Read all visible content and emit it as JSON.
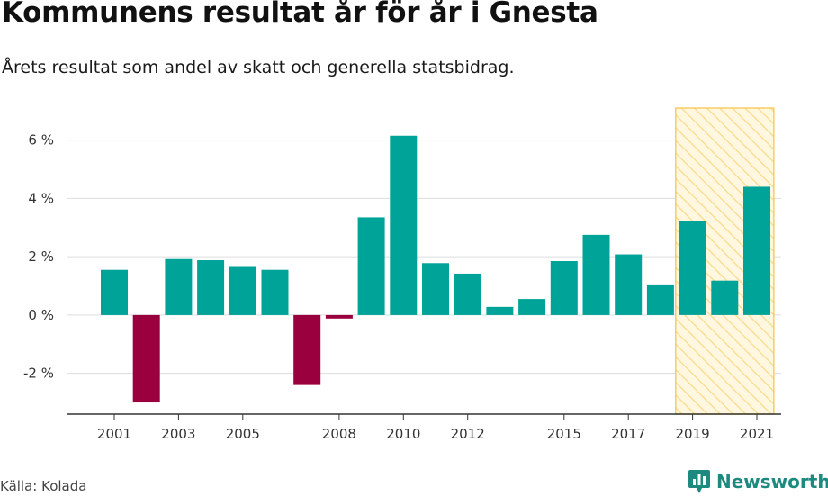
{
  "title": "Kommunens resultat år för år i Gnesta",
  "subtitle": "Årets resultat som andel av skatt och generella statsbidrag.",
  "source": "Källa: Kolada",
  "brand": {
    "name": "Newsworthy",
    "icon": "newsworthy-logo-icon",
    "color": "#1d8a80"
  },
  "colors": {
    "positive": "#00a398",
    "negative": "#99003d",
    "highlight": "#f5c242"
  },
  "chart_data": {
    "type": "bar",
    "categories": [
      "2001",
      "2002",
      "2003",
      "2004",
      "2005",
      "2006",
      "2007",
      "2008",
      "2009",
      "2010",
      "2011",
      "2012",
      "2013",
      "2014",
      "2015",
      "2016",
      "2017",
      "2018",
      "2019",
      "2020",
      "2021"
    ],
    "values": [
      1.55,
      -3.0,
      1.92,
      1.88,
      1.68,
      1.55,
      -2.4,
      -0.12,
      3.35,
      6.15,
      1.78,
      1.42,
      0.28,
      0.55,
      1.85,
      2.75,
      2.08,
      1.05,
      3.22,
      1.18,
      4.4
    ],
    "x_tick_labels": [
      "2001",
      "2003",
      "2005",
      "2008",
      "2010",
      "2012",
      "2015",
      "2017",
      "2019",
      "2021"
    ],
    "y_ticks": [
      -2,
      0,
      2,
      4,
      6
    ],
    "y_tick_labels": [
      "-2 %",
      "0 %",
      "2 %",
      "4 %",
      "6 %"
    ],
    "ylim": [
      -3.4,
      7.1
    ],
    "highlight_range": [
      "2019",
      "2021"
    ],
    "grid": true
  }
}
